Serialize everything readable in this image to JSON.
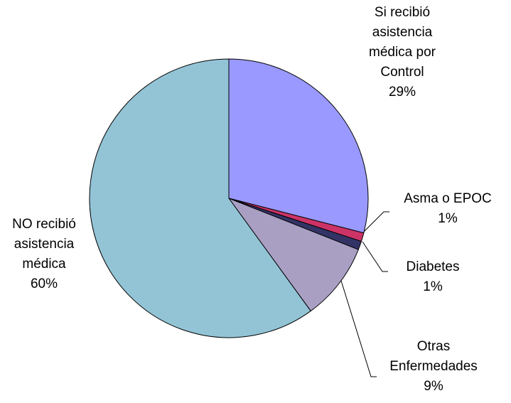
{
  "chart_data": {
    "type": "pie",
    "categories": [
      "Si recibió asistencia médica por Control",
      "Asma o EPOC",
      "Diabetes",
      "Otras Enfermedades",
      "NO recibió asistencia médica"
    ],
    "values": [
      29,
      1,
      1,
      9,
      60
    ],
    "value_labels": [
      "29%",
      "1%",
      "1%",
      "9%",
      "60%"
    ],
    "colors": [
      "#9999ff",
      "#cc3366",
      "#333366",
      "#a99fc3",
      "#93c4d6"
    ]
  }
}
